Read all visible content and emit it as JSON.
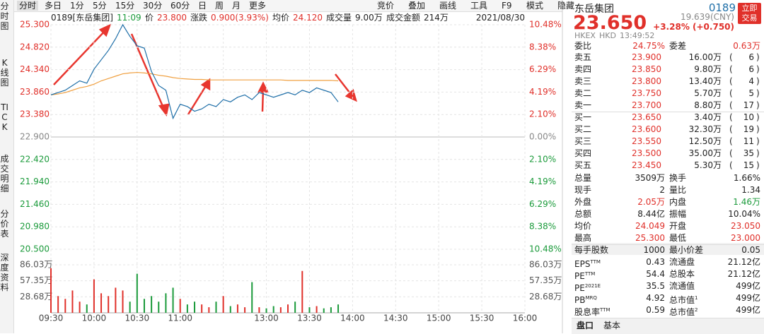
{
  "toolbar": {
    "left": [
      "分时",
      "多日",
      "1分",
      "5分",
      "15分",
      "30分",
      "60分",
      "日",
      "周",
      "月",
      "更多"
    ],
    "right": [
      "竞价",
      "叠加",
      "画线",
      "工具",
      "F9",
      "模式",
      "隐藏"
    ]
  },
  "side_tabs": [
    "分时图",
    "K线图",
    "TICK",
    "成交明细",
    "分价表",
    "深度资料"
  ],
  "info_line": {
    "code": "0189[东岳集团]",
    "time": "11:09",
    "price_label": "价",
    "price": "23.800",
    "change_label": "涨跌",
    "change": "0.900(3.93%)",
    "avg_label": "均价",
    "avg": "24.120",
    "volume_label": "成交量",
    "volume": "9.00万",
    "amount_label": "成交金额",
    "amount": "214万",
    "date": "2021/08/30"
  },
  "price_axis": {
    "ticks": [
      {
        "value": 25.3,
        "label": "25.300"
      },
      {
        "value": 24.82,
        "label": "24.820"
      },
      {
        "value": 24.34,
        "label": "24.340"
      },
      {
        "value": 23.86,
        "label": "23.860"
      },
      {
        "value": 23.38,
        "label": "23.380"
      },
      {
        "value": 22.9,
        "label": "22.900"
      },
      {
        "value": 22.42,
        "label": "22.420"
      },
      {
        "value": 21.94,
        "label": "21.940"
      },
      {
        "value": 21.46,
        "label": "21.460"
      },
      {
        "value": 20.98,
        "label": "20.980"
      },
      {
        "value": 20.5,
        "label": "20.500"
      }
    ],
    "percent_labels": [
      "10.48%",
      "8.38%",
      "6.29%",
      "4.19%",
      "2.10%",
      "0.00%",
      "2.10%",
      "4.19%",
      "6.29%",
      "8.38%",
      "10.48%"
    ]
  },
  "volume_axis": {
    "ticks": [
      {
        "value": 86.03,
        "label": "86.03万"
      },
      {
        "value": 57.35,
        "label": "57.35万"
      },
      {
        "value": 28.68,
        "label": "28.68万"
      }
    ]
  },
  "time_axis": [
    "09:30",
    "10:00",
    "10:30",
    "11:00",
    null,
    "13:00",
    "13:30",
    "14:00",
    "14:30",
    "15:00",
    "15:30",
    "16:00"
  ],
  "price_series": {
    "color": "#1f6fa8",
    "values": [
      23.8,
      23.85,
      23.9,
      24.0,
      24.1,
      24.05,
      24.35,
      24.55,
      24.75,
      25.0,
      25.3,
      25.05,
      24.85,
      24.8,
      24.3,
      24.0,
      23.9,
      23.3,
      23.6,
      23.55,
      23.45,
      23.5,
      23.6,
      23.55,
      23.7,
      23.65,
      23.75,
      23.8,
      23.7,
      23.85,
      23.8,
      23.75,
      23.8,
      23.85,
      23.8,
      23.9,
      23.85,
      23.95,
      23.9,
      23.85,
      23.65
    ]
  },
  "avg_series": {
    "color": "#f0a040",
    "values": [
      23.8,
      23.82,
      23.85,
      23.9,
      23.95,
      23.98,
      24.03,
      24.1,
      24.15,
      24.2,
      24.25,
      24.27,
      24.28,
      24.27,
      24.25,
      24.22,
      24.2,
      24.17,
      24.15,
      24.14,
      24.13,
      24.13,
      24.12,
      24.12,
      24.12,
      24.12,
      24.12,
      24.12,
      24.12,
      24.12,
      24.12,
      24.12,
      24.12,
      24.11,
      24.11,
      24.11,
      24.11,
      24.11,
      24.11,
      24.11,
      24.1
    ]
  },
  "volume_series": {
    "up_color": "#e0302a",
    "down_color": "#1a9a3a",
    "values": [
      80,
      30,
      25,
      40,
      20,
      15,
      60,
      35,
      30,
      45,
      40,
      20,
      70,
      25,
      30,
      20,
      35,
      45,
      25,
      15,
      20,
      15,
      10,
      20,
      30,
      12,
      15,
      10,
      55,
      10,
      8,
      12,
      10,
      15,
      20,
      75,
      10,
      12,
      8,
      10,
      15
    ]
  },
  "quote": {
    "name": "东岳集团",
    "code": "0189",
    "trade_button": "立即交易",
    "price": "23.650",
    "cny": "19.639(CNY)",
    "change": "+3.28% (+0.750)",
    "market": "HKEX",
    "currency": "HKD",
    "time": "13:49:52"
  },
  "order_ratio": {
    "label": "委比",
    "value": "24.75%",
    "label2": "委差",
    "value2": "0.63万"
  },
  "order_book": {
    "brackets": [
      "(",
      ")"
    ],
    "rows": [
      {
        "label": "卖五",
        "price": "23.900",
        "volume": "16.00万",
        "count": "6"
      },
      {
        "label": "卖四",
        "price": "23.850",
        "volume": "9.80万",
        "count": "6"
      },
      {
        "label": "卖三",
        "price": "23.800",
        "volume": "13.40万",
        "count": "4"
      },
      {
        "label": "卖二",
        "price": "23.750",
        "volume": "5.70万",
        "count": "5"
      },
      {
        "label": "卖一",
        "price": "23.700",
        "volume": "8.80万",
        "count": "17"
      },
      {
        "label": "买一",
        "price": "23.650",
        "volume": "3.40万",
        "count": "10"
      },
      {
        "label": "买二",
        "price": "23.600",
        "volume": "32.30万",
        "count": "19"
      },
      {
        "label": "买三",
        "price": "23.550",
        "volume": "12.50万",
        "count": "11"
      },
      {
        "label": "买四",
        "price": "23.500",
        "volume": "35.00万",
        "count": "35"
      },
      {
        "label": "买五",
        "price": "23.450",
        "volume": "5.30万",
        "count": "15"
      }
    ]
  },
  "stats": [
    [
      {
        "text": "总量"
      },
      {
        "text": "3509万"
      },
      {
        "text": "换手"
      },
      {
        "text": "1.66%"
      }
    ],
    [
      {
        "text": "现手"
      },
      {
        "text": "2"
      },
      {
        "text": "量比"
      },
      {
        "text": "1.34"
      }
    ],
    [
      {
        "text": "外盘"
      },
      {
        "text": "2.05万",
        "color": "#e0302a"
      },
      {
        "text": "内盘"
      },
      {
        "text": "1.46万",
        "color": "#1a9a3a"
      }
    ],
    [
      {
        "text": "总额"
      },
      {
        "text": "8.44亿"
      },
      {
        "text": "振幅"
      },
      {
        "text": "10.04%"
      }
    ],
    [
      {
        "text": "均价"
      },
      {
        "text": "24.049",
        "color": "#e0302a"
      },
      {
        "text": "开盘"
      },
      {
        "text": "23.050",
        "color": "#e0302a"
      }
    ],
    [
      {
        "text": "最高"
      },
      {
        "text": "25.300",
        "color": "#e0302a"
      },
      {
        "text": "最低"
      },
      {
        "text": "23.000",
        "color": "#e0302a"
      }
    ],
    [
      {
        "text": "每手股数"
      },
      {
        "text": "1000"
      },
      {
        "text": "最小价差"
      },
      {
        "text": "0.05"
      }
    ],
    [
      {
        "text": "EPS",
        "sup": "TTM"
      },
      {
        "text": "0.43"
      },
      {
        "text": "流通盘"
      },
      {
        "text": "21.12亿"
      }
    ],
    [
      {
        "text": "PE",
        "sup": "TTM"
      },
      {
        "text": "54.4"
      },
      {
        "text": "总股本"
      },
      {
        "text": "21.12亿"
      }
    ],
    [
      {
        "text": "PE",
        "sup": "2021E"
      },
      {
        "text": "35.5"
      },
      {
        "text": "流通值"
      },
      {
        "text": "499亿"
      }
    ],
    [
      {
        "text": "PB",
        "sup": "MRQ"
      },
      {
        "text": "4.92"
      },
      {
        "text": "总市值",
        "sup": "1"
      },
      {
        "text": "499亿"
      }
    ],
    [
      {
        "text": "股息率",
        "sup": "TTM"
      },
      {
        "text": "0.59"
      },
      {
        "text": "总市值",
        "sup": "2"
      },
      {
        "text": "499亿"
      }
    ]
  ],
  "bottom_tabs": [
    "盘口",
    "基本"
  ]
}
